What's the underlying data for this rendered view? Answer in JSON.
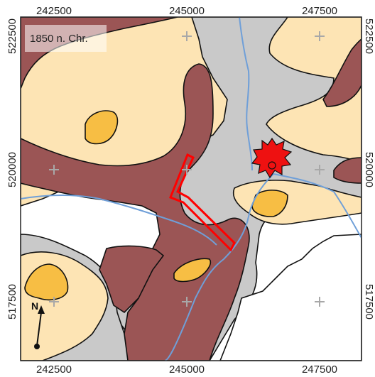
{
  "map": {
    "era_label": "1850 n. Chr.",
    "north_label": "N",
    "x_ticks_top": [
      "242500",
      "245000",
      "247500"
    ],
    "x_ticks_bottom": [
      "242500",
      "245000",
      "247500"
    ],
    "y_ticks_left": [
      "522500",
      "520000",
      "517500"
    ],
    "y_ticks_right": [
      "522500",
      "520000",
      "517500"
    ],
    "colors": {
      "background": "#ffffff",
      "dark_unit": "#9b5555",
      "light_unit": "#fde4b4",
      "orange_unit": "#f7be44",
      "grey_unit": "#c9c9c9",
      "river": "#6f9fd8",
      "highlight_outline": "#ff0000",
      "settlement": "#ee1111",
      "grid_cross": "#a8a8a8"
    },
    "icons": [
      "north-arrow-icon",
      "settlement-star-icon",
      "grid-cross-icon"
    ]
  }
}
